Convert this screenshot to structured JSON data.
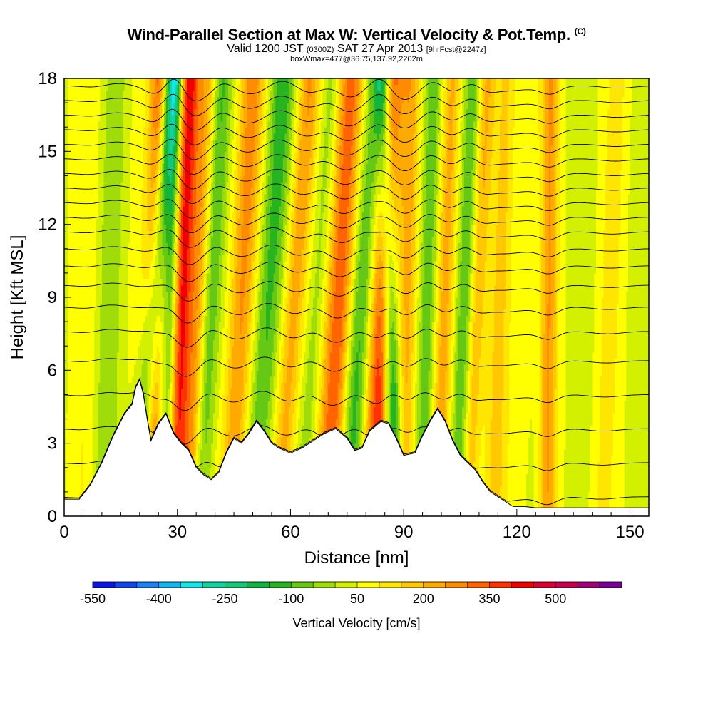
{
  "header": {
    "title": "Wind-Parallel Section at Max W: Vertical Velocity & Pot.Temp.",
    "copyright": "(C)",
    "valid_prefix": "Valid 1200 JST",
    "valid_utc": "(0300Z)",
    "valid_date": "SAT 27 Apr 2013",
    "forecast": "[9hrFcst@2247z]",
    "box_info": "boxWmax=477@36.75,137.92,2202m"
  },
  "chart_data": {
    "type": "heatmap",
    "xlabel": "Distance [nm]",
    "ylabel": "Height [Kft MSL]",
    "xlim": [
      0,
      155
    ],
    "ylim": [
      0,
      18
    ],
    "x_ticks": [
      "0",
      "30",
      "60",
      "90",
      "120",
      "150"
    ],
    "x_tick_values": [
      0,
      30,
      60,
      90,
      120,
      150
    ],
    "y_ticks": [
      "0",
      "3",
      "6",
      "9",
      "12",
      "15",
      "18"
    ],
    "y_tick_values": [
      0,
      3,
      6,
      9,
      12,
      15,
      18
    ],
    "colorbar": {
      "label": "Vertical Velocity [cm/s]",
      "tick_labels": [
        "-550",
        "-400",
        "-250",
        "-100",
        "50",
        "200",
        "350",
        "500"
      ],
      "min": -550,
      "max": 650,
      "step": 50,
      "colors": [
        "#0a14e6",
        "#1446f0",
        "#1a82f2",
        "#14b4f0",
        "#12e6e6",
        "#14d2a0",
        "#14c878",
        "#10b440",
        "#28b41e",
        "#64c814",
        "#a0dc0a",
        "#d2f000",
        "#ffff00",
        "#ffe600",
        "#ffc800",
        "#ffaa00",
        "#ff8c00",
        "#ff6400",
        "#ff3200",
        "#f00000",
        "#dc0032",
        "#c80050",
        "#a00078",
        "#780096"
      ]
    },
    "terrain_profile": [
      [
        0,
        0.7
      ],
      [
        4,
        0.7
      ],
      [
        7,
        1.3
      ],
      [
        10,
        2.2
      ],
      [
        13,
        3.3
      ],
      [
        16,
        4.2
      ],
      [
        18,
        4.6
      ],
      [
        19,
        5.3
      ],
      [
        20,
        5.6
      ],
      [
        21,
        5.0
      ],
      [
        22,
        4.0
      ],
      [
        23,
        3.1
      ],
      [
        25,
        3.8
      ],
      [
        27,
        4.2
      ],
      [
        29,
        3.4
      ],
      [
        31,
        3.0
      ],
      [
        33,
        2.7
      ],
      [
        35,
        2.0
      ],
      [
        37,
        1.7
      ],
      [
        39,
        1.5
      ],
      [
        41,
        1.8
      ],
      [
        43,
        2.6
      ],
      [
        45,
        3.2
      ],
      [
        47,
        3.0
      ],
      [
        49,
        3.4
      ],
      [
        51,
        3.9
      ],
      [
        53,
        3.5
      ],
      [
        55,
        3.0
      ],
      [
        57,
        2.8
      ],
      [
        60,
        2.6
      ],
      [
        63,
        2.8
      ],
      [
        66,
        3.1
      ],
      [
        69,
        3.4
      ],
      [
        72,
        3.6
      ],
      [
        75,
        3.2
      ],
      [
        77,
        2.7
      ],
      [
        79,
        2.8
      ],
      [
        81,
        3.5
      ],
      [
        84,
        3.9
      ],
      [
        86,
        3.8
      ],
      [
        88,
        3.2
      ],
      [
        90,
        2.5
      ],
      [
        93,
        2.6
      ],
      [
        95,
        3.3
      ],
      [
        97,
        3.9
      ],
      [
        99,
        4.4
      ],
      [
        101,
        3.9
      ],
      [
        103,
        3.1
      ],
      [
        105,
        2.5
      ],
      [
        107,
        2.2
      ],
      [
        109,
        1.9
      ],
      [
        111,
        1.4
      ],
      [
        113,
        1.0
      ],
      [
        116,
        0.7
      ],
      [
        119,
        0.4
      ],
      [
        122,
        0.4
      ],
      [
        125,
        0.35
      ],
      [
        128,
        0.35
      ],
      [
        155,
        0.35
      ]
    ],
    "velocity_bands": [
      {
        "x_base": 20,
        "x_top": 28.0,
        "width": 2.6,
        "w": -450
      },
      {
        "x_base": 22,
        "x_top": 26.0,
        "width": 2.8,
        "w": 450
      },
      {
        "x_base": 29,
        "x_top": 33.0,
        "width": 3.0,
        "w": 400
      },
      {
        "x_base": 27,
        "x_top": 30.0,
        "width": 2.0,
        "w": -250
      },
      {
        "x_base": 33,
        "x_top": 38.0,
        "width": 2.4,
        "w": 150
      },
      {
        "x_base": 36,
        "x_top": 42.0,
        "width": 2.4,
        "w": -130
      },
      {
        "x_base": 44,
        "x_top": 50.0,
        "width": 3.5,
        "w": 220
      },
      {
        "x_base": 50,
        "x_top": 58.0,
        "width": 3.5,
        "w": -160
      },
      {
        "x_base": 57,
        "x_top": 65.0,
        "width": 3.0,
        "w": 200
      },
      {
        "x_base": 63,
        "x_top": 71.0,
        "width": 2.6,
        "w": -90
      },
      {
        "x_base": 70,
        "x_top": 76.0,
        "width": 3.5,
        "w": 320
      },
      {
        "x_base": 75,
        "x_top": 83.0,
        "width": 3.2,
        "w": -170
      },
      {
        "x_base": 82,
        "x_top": 87.0,
        "width": 3.2,
        "w": 330
      },
      {
        "x_base": 88,
        "x_top": 84.5,
        "width": 2.2,
        "w": -280
      },
      {
        "x_base": 90,
        "x_top": 92.0,
        "width": 2.6,
        "w": 200
      },
      {
        "x_base": 95,
        "x_top": 98.0,
        "width": 2.6,
        "w": -150
      },
      {
        "x_base": 99,
        "x_top": 103.0,
        "width": 2.6,
        "w": 180
      },
      {
        "x_base": 104,
        "x_top": 108.5,
        "width": 2.4,
        "w": -120
      },
      {
        "x_base": 107,
        "x_top": 112.0,
        "width": 2.2,
        "w": 160
      },
      {
        "x_base": 114,
        "x_top": 117.5,
        "width": 3.0,
        "w": 110
      },
      {
        "x_base": 120,
        "x_top": 124.0,
        "width": 3.0,
        "w": 60
      },
      {
        "x_base": 128,
        "x_top": 129.0,
        "width": 2.2,
        "w": 190
      },
      {
        "x_base": 142,
        "x_top": 147.0,
        "width": 3.5,
        "w": 60
      },
      {
        "x_base": 10,
        "x_top": 14.0,
        "width": 3.0,
        "w": -60
      },
      {
        "x_base": 5,
        "x_top": 8.0,
        "width": 3.0,
        "w": 40
      }
    ],
    "theta_contour_levels": [
      0.8,
      2.2,
      3.6,
      5.0,
      6.4,
      7.6,
      8.6,
      9.5,
      10.3,
      11.0,
      11.7,
      12.3,
      12.9,
      13.5,
      14.1,
      14.7,
      15.3,
      15.9,
      16.5,
      17.1,
      17.7
    ],
    "grid": false,
    "legend": "bottom"
  }
}
